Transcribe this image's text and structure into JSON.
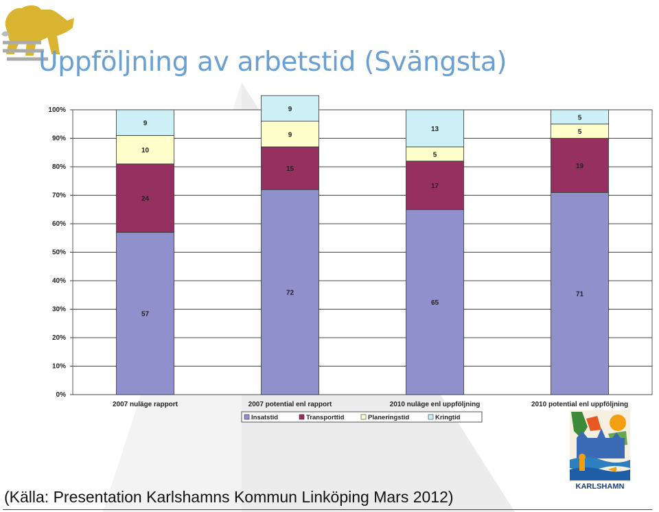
{
  "slide": {
    "title": "Uppföljning av arbetstid (Svängsta)",
    "source": "(Källa: Presentation Karlshamns Kommun Linköping Mars 2012)",
    "logo_text": "KARLSHAMN"
  },
  "chart_data": {
    "type": "bar",
    "stacked": true,
    "categories": [
      "2007 nuläge rapport",
      "2007 potential enl rapport",
      "2010 nuläge enl uppföljning",
      "2010 potential enl uppföljning"
    ],
    "series": [
      {
        "name": "Insatstid",
        "values": [
          57,
          72,
          65,
          71
        ],
        "color": "#9090cc"
      },
      {
        "name": "Transporttid",
        "values": [
          24,
          15,
          17,
          19
        ],
        "color": "#953060"
      },
      {
        "name": "Planeringstid",
        "values": [
          10,
          9,
          5,
          5
        ],
        "color": "#ffffcc"
      },
      {
        "name": "Kringtid",
        "values": [
          9,
          9,
          13,
          5
        ],
        "color": "#ccf0f5"
      }
    ],
    "display_labels": [
      [
        "57",
        "24",
        "10",
        "9"
      ],
      [
        "72",
        "15",
        "9",
        "9"
      ],
      [
        "65",
        "17",
        "5",
        "13"
      ],
      [
        "71",
        "19",
        "5",
        "5"
      ]
    ],
    "ylim": [
      0,
      100
    ],
    "yticks": [
      "0%",
      "10%",
      "20%",
      "30%",
      "40%",
      "50%",
      "60%",
      "70%",
      "80%",
      "90%",
      "100%"
    ],
    "grid": true,
    "legend_position": "bottom",
    "title": "",
    "xlabel": "",
    "ylabel": ""
  }
}
